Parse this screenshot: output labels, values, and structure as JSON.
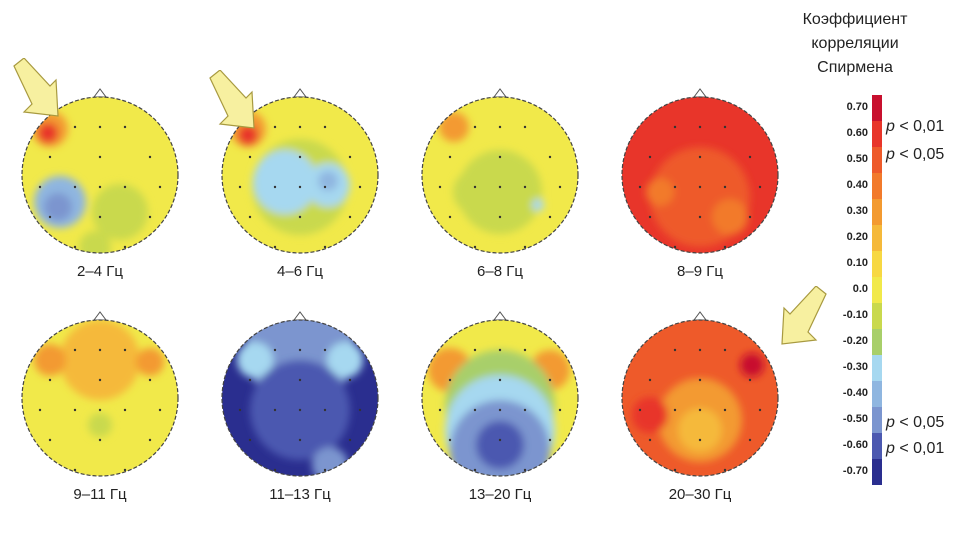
{
  "colorbar": {
    "title": [
      "Коэффициент",
      "корреляции",
      "Спирмена"
    ],
    "ticks": [
      "0.70",
      "0.60",
      "0.50",
      "0.40",
      "0.30",
      "0.20",
      "0.10",
      "0.0",
      "-0.10",
      "-0.20",
      "-0.30",
      "-0.40",
      "-0.50",
      "-0.60",
      "-0.70"
    ],
    "colors": [
      "#c8102e",
      "#e8352a",
      "#ee5a2a",
      "#f27a2b",
      "#f39a30",
      "#f5b93a",
      "#f7d843",
      "#f1e94a",
      "#c9d94d",
      "#a8cf6a",
      "#a6d8f0",
      "#8fb6e0",
      "#7b95cf",
      "#4b58b0",
      "#2a2e8f"
    ],
    "sig_pos": [
      [
        "p",
        " < 0,01"
      ],
      [
        "p",
        " < 0,05"
      ]
    ],
    "sig_neg": [
      [
        "p",
        " < 0,05"
      ],
      [
        "p",
        " < 0,01"
      ]
    ]
  },
  "maps": [
    {
      "label": "2–4 Гц",
      "base": "#f1e94a",
      "blobs": [
        {
          "c": "#f39a30",
          "cx": 30,
          "cy": 32,
          "r": 18
        },
        {
          "c": "#e8352a",
          "cx": 28,
          "cy": 36,
          "r": 10
        },
        {
          "c": "#8fb6e0",
          "cx": 40,
          "cy": 105,
          "r": 26
        },
        {
          "c": "#7b95cf",
          "cx": 38,
          "cy": 110,
          "r": 14
        },
        {
          "c": "#c9d94d",
          "cx": 100,
          "cy": 115,
          "r": 28
        },
        {
          "c": "#c9d94d",
          "cx": 75,
          "cy": 150,
          "r": 16
        }
      ]
    },
    {
      "label": "4–6 Гц",
      "base": "#f1e94a",
      "blobs": [
        {
          "c": "#f39a30",
          "cx": 28,
          "cy": 32,
          "r": 18
        },
        {
          "c": "#e8352a",
          "cx": 28,
          "cy": 38,
          "r": 10
        },
        {
          "c": "#c9d94d",
          "cx": 80,
          "cy": 90,
          "r": 48
        },
        {
          "c": "#a6d8f0",
          "cx": 65,
          "cy": 85,
          "r": 32
        },
        {
          "c": "#a6d8f0",
          "cx": 108,
          "cy": 88,
          "r": 22
        },
        {
          "c": "#8fb6e0",
          "cx": 108,
          "cy": 84,
          "r": 10
        }
      ]
    },
    {
      "label": "6–8 Гц",
      "base": "#f1e94a",
      "blobs": [
        {
          "c": "#f39a30",
          "cx": 34,
          "cy": 30,
          "r": 15
        },
        {
          "c": "#c9d94d",
          "cx": 80,
          "cy": 95,
          "r": 42
        },
        {
          "c": "#c9d94d",
          "cx": 55,
          "cy": 95,
          "r": 22
        },
        {
          "c": "#a6d8f0",
          "cx": 118,
          "cy": 108,
          "r": 6
        }
      ]
    },
    {
      "label": "8–9 Гц",
      "base": "#e8352a",
      "blobs": [
        {
          "c": "#ee5a2a",
          "cx": 80,
          "cy": 100,
          "r": 50
        },
        {
          "c": "#f27a2b",
          "cx": 110,
          "cy": 120,
          "r": 18
        },
        {
          "c": "#f27a2b",
          "cx": 40,
          "cy": 95,
          "r": 14
        }
      ]
    },
    {
      "label": "9–11 Гц",
      "base": "#f1e94a",
      "blobs": [
        {
          "c": "#f5b93a",
          "cx": 80,
          "cy": 40,
          "r": 40
        },
        {
          "c": "#f39a30",
          "cx": 30,
          "cy": 40,
          "r": 16
        },
        {
          "c": "#f39a30",
          "cx": 130,
          "cy": 42,
          "r": 14
        },
        {
          "c": "#c9d94d",
          "cx": 80,
          "cy": 105,
          "r": 12
        }
      ]
    },
    {
      "label": "11–13 Гц",
      "base": "#2a2e8f",
      "blobs": [
        {
          "c": "#7b95cf",
          "cx": 80,
          "cy": 30,
          "r": 55
        },
        {
          "c": "#a6d8f0",
          "cx": 35,
          "cy": 40,
          "r": 18
        },
        {
          "c": "#a6d8f0",
          "cx": 125,
          "cy": 40,
          "r": 18
        },
        {
          "c": "#4b58b0",
          "cx": 80,
          "cy": 90,
          "r": 50
        },
        {
          "c": "#7b95cf",
          "cx": 110,
          "cy": 145,
          "r": 18
        }
      ]
    },
    {
      "label": "13–20 Гц",
      "base": "#f1e94a",
      "blobs": [
        {
          "c": "#f39a30",
          "cx": 30,
          "cy": 50,
          "r": 22
        },
        {
          "c": "#f39a30",
          "cx": 130,
          "cy": 50,
          "r": 20
        },
        {
          "c": "#a8cf6a",
          "cx": 80,
          "cy": 85,
          "r": 55
        },
        {
          "c": "#a6d8f0",
          "cx": 80,
          "cy": 110,
          "r": 55
        },
        {
          "c": "#7b95cf",
          "cx": 80,
          "cy": 130,
          "r": 50
        },
        {
          "c": "#4b58b0",
          "cx": 80,
          "cy": 125,
          "r": 24
        }
      ]
    },
    {
      "label": "20–30 Гц",
      "base": "#ee5a2a",
      "blobs": [
        {
          "c": "#f39a30",
          "cx": 80,
          "cy": 100,
          "r": 42
        },
        {
          "c": "#f5b93a",
          "cx": 80,
          "cy": 110,
          "r": 22
        },
        {
          "c": "#c8102e",
          "cx": 132,
          "cy": 45,
          "r": 12
        },
        {
          "c": "#e8352a",
          "cx": 30,
          "cy": 95,
          "r": 18
        }
      ]
    }
  ]
}
